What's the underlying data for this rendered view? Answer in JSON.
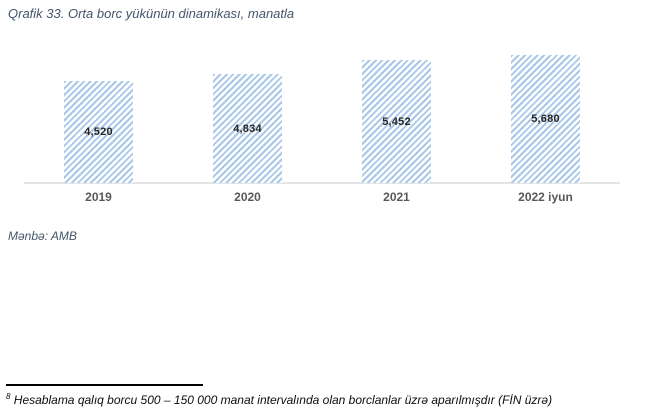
{
  "page": {
    "title": "Qrafik 33. Orta borc yükünün dinamikası, manatla"
  },
  "chart_data": {
    "type": "bar",
    "title": "Qrafik 33. Orta borc yükünün dinamikası, manatla",
    "categories": [
      "2019",
      "2020",
      "2021",
      "2022 iyun"
    ],
    "values": [
      4520,
      4834,
      5452,
      5680
    ],
    "value_labels": [
      "4,520",
      "4,834",
      "5,452",
      "5,680"
    ],
    "xlabel": "",
    "ylabel": "",
    "ylim": [
      0,
      5680
    ],
    "grid": false,
    "legend": false,
    "bar_style": "diagonal-hatch",
    "bar_hatch_color": "#a9c7e9",
    "value_label_position": "center-of-bar"
  },
  "source": {
    "label": "Mənbə: AMB"
  },
  "footnote": {
    "marker": "8",
    "text": " Hesablama qalıq borcu 500 – 150 000 manat intervalında olan borclanlar üzrə aparılmışdır (FİN üzrə)"
  },
  "colors": {
    "title_text": "#44546A",
    "bar_hatch": "#a9c7e9",
    "value_label": "#262626",
    "category_label": "#595959",
    "axis_line": "#e4e4e4",
    "footnote_text": "#0d0d0d"
  }
}
